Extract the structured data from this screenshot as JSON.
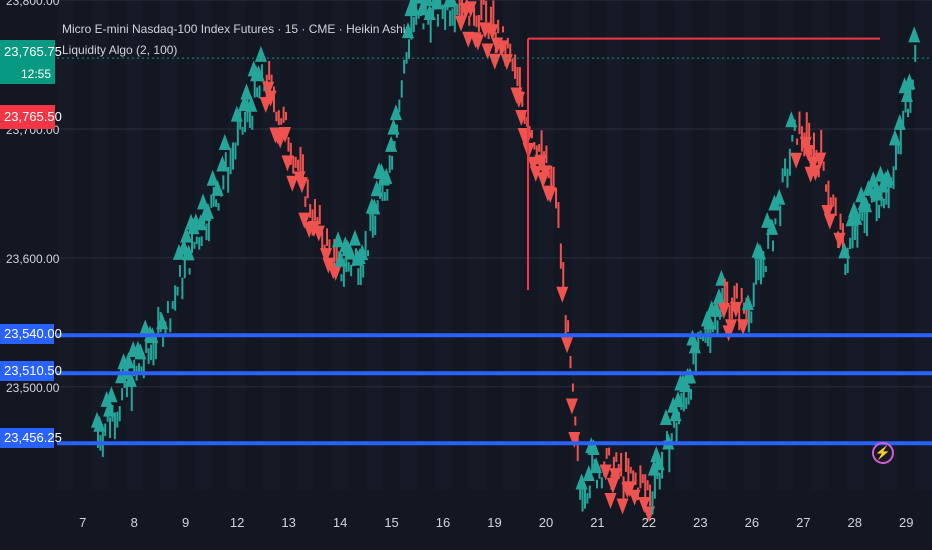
{
  "chart_data": {
    "type": "candlestick",
    "title": "Micro E-mini Nasdaq-100 Index Futures · 15 · CME · Heikin Ashi",
    "indicator": "Liquidity Algo (2, 100)",
    "ylim": [
      23420,
      23800
    ],
    "y_ticks": [
      "23,800.00",
      "23,700.00",
      "23,600.00",
      "23,500.00"
    ],
    "x_ticks": [
      "7",
      "8",
      "9",
      "12",
      "13",
      "14",
      "15",
      "16",
      "19",
      "20",
      "21",
      "22",
      "23",
      "26",
      "27",
      "28",
      "29"
    ],
    "last_price": "23,765.75",
    "countdown": "12:55",
    "bid_price": "23,765.50",
    "levels": [
      {
        "label": "23,540.00",
        "value": 23540
      },
      {
        "label": "23,510.50",
        "value": 23510.5
      },
      {
        "label": "23,456.25",
        "value": 23456.25
      }
    ],
    "resistance_line": 23770,
    "series": [
      {
        "name": "price_path",
        "values": [
          23460,
          23490,
          23520,
          23560,
          23610,
          23650,
          23700,
          23740,
          23690,
          23630,
          23590,
          23600,
          23660,
          23780,
          23790,
          23800,
          23790,
          23760,
          23700,
          23650,
          23420,
          23440,
          23430,
          23420,
          23470,
          23530,
          23570,
          23560,
          23620,
          23700,
          23680,
          23600,
          23640,
          23660,
          23765
        ]
      }
    ],
    "colors": {
      "background": "#131722",
      "up": "#26a69a",
      "down": "#ef5350",
      "level": "#2962ff",
      "resistance": "#f23645",
      "grid": "#2a2e39",
      "text": "#d1d4dc",
      "last_price_bg": "#089981",
      "bid_bg": "#f23645"
    }
  }
}
